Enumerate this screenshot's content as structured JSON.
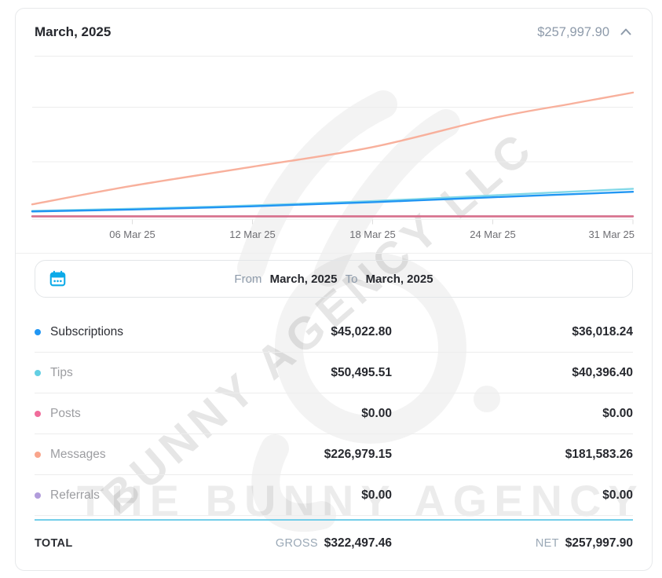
{
  "header": {
    "title": "March, 2025",
    "amount": "$257,997.90"
  },
  "date_range": {
    "from_label": "From",
    "from_value": "March, 2025",
    "to_label": "To",
    "to_value": "March, 2025"
  },
  "watermark": {
    "diagonal": "BUNNY AGENCY LLC",
    "horizontal": "THE BUNNY AGENCY"
  },
  "chart_data": {
    "type": "line",
    "x_range_days": [
      1,
      31
    ],
    "ylim": [
      0,
      270000
    ],
    "y_gridlines": [
      100000,
      200000
    ],
    "grid": "horizontal",
    "legend_position": "none",
    "x_ticks": [
      {
        "day": 6,
        "label": "06 Mar 25"
      },
      {
        "day": 12,
        "label": "12 Mar 25"
      },
      {
        "day": 18,
        "label": "18 Mar 25"
      },
      {
        "day": 24,
        "label": "24 Mar 25"
      },
      {
        "day": 31,
        "label": "31 Mar 25"
      }
    ],
    "series": [
      {
        "name": "Referrals",
        "color": "#b39ddb",
        "points": [
          [
            1,
            0
          ],
          [
            31,
            0
          ]
        ]
      },
      {
        "name": "Posts",
        "color": "#db7089",
        "points": [
          [
            1,
            0
          ],
          [
            31,
            0
          ]
        ]
      },
      {
        "name": "Tips",
        "color": "#82d8e8",
        "points": [
          [
            1,
            10000
          ],
          [
            6,
            14000
          ],
          [
            12,
            20000
          ],
          [
            18,
            28000
          ],
          [
            24,
            38500
          ],
          [
            31,
            50495.51
          ]
        ]
      },
      {
        "name": "Subscriptions",
        "color": "#2196f3",
        "points": [
          [
            1,
            9000
          ],
          [
            6,
            12500
          ],
          [
            12,
            18500
          ],
          [
            18,
            26000
          ],
          [
            24,
            35000
          ],
          [
            31,
            45022.8
          ]
        ]
      },
      {
        "name": "Messages",
        "color": "#f8b09c",
        "points": [
          [
            1,
            22000
          ],
          [
            6,
            56000
          ],
          [
            12,
            91000
          ],
          [
            18,
            127000
          ],
          [
            24,
            180000
          ],
          [
            28,
            207000
          ],
          [
            31,
            226979.15
          ]
        ]
      }
    ]
  },
  "table": {
    "rows": [
      {
        "label": "Subscriptions",
        "dot_color": "#2196f3",
        "gross": "$45,022.80",
        "net": "$36,018.24",
        "active": true
      },
      {
        "label": "Tips",
        "dot_color": "#63cfe3",
        "gross": "$50,495.51",
        "net": "$40,396.40",
        "active": false
      },
      {
        "label": "Posts",
        "dot_color": "#f06c9b",
        "gross": "$0.00",
        "net": "$0.00",
        "active": false
      },
      {
        "label": "Messages",
        "dot_color": "#f9a58c",
        "gross": "$226,979.15",
        "net": "$181,583.26",
        "active": false
      },
      {
        "label": "Referrals",
        "dot_color": "#b19cdb",
        "gross": "$0.00",
        "net": "$0.00",
        "active": false
      }
    ],
    "total": {
      "label": "TOTAL",
      "gross_label": "GROSS",
      "gross": "$322,497.46",
      "net_label": "NET",
      "net": "$257,997.90"
    }
  },
  "colors": {
    "accent_blue": "#2196f3",
    "calendar_icon": "#0caae8",
    "cyan_divider": "#74cee9",
    "slate_text": "#8d9aaa"
  }
}
